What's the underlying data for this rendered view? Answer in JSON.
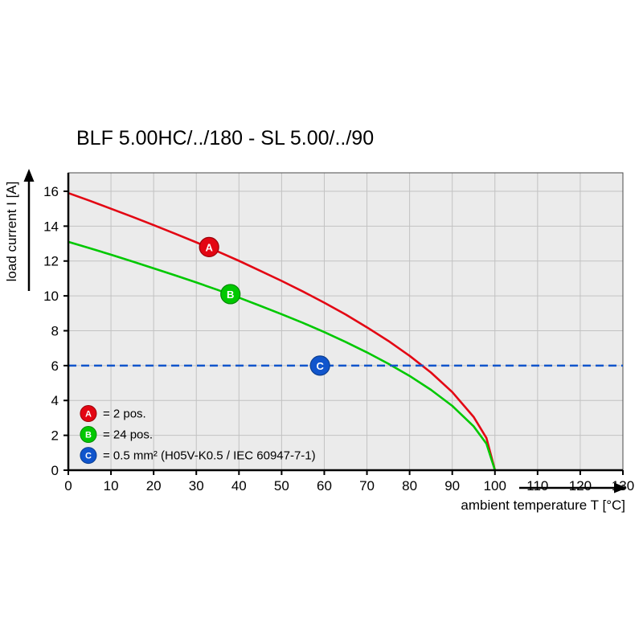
{
  "title": "BLF 5.00HC/../180 - SL 5.00/../90",
  "chart_data": {
    "type": "line",
    "title": "BLF 5.00HC/../180 - SL 5.00/../90",
    "xlabel": "ambient temperature T [°C]",
    "ylabel": "load current I [A]",
    "xlim": [
      0,
      130
    ],
    "ylim": [
      0,
      17.06
    ],
    "x_ticks": [
      0,
      10,
      20,
      30,
      40,
      50,
      60,
      70,
      80,
      90,
      100,
      110,
      120,
      130
    ],
    "y_ticks": [
      0,
      2,
      4,
      6,
      8,
      10,
      12,
      14,
      16
    ],
    "grid": true,
    "legend_position": "lower-left-inside",
    "style": {
      "plot_bg": "#ebebeb",
      "grid_color": "#c2c2c2",
      "border_color": "#4a4a4a",
      "axis_color": "#000000"
    },
    "series": [
      {
        "name": "A",
        "legend_text": "= 2 pos.",
        "color": "#e30613",
        "edge": "#9b0009",
        "kind": "curve",
        "x": [
          0,
          5,
          10,
          15,
          20,
          25,
          30,
          35,
          40,
          45,
          50,
          55,
          60,
          65,
          70,
          75,
          80,
          85,
          90,
          95,
          98,
          100
        ],
        "y": [
          15.9,
          15.46,
          15.0,
          14.54,
          14.06,
          13.57,
          13.07,
          12.55,
          12.01,
          11.44,
          10.86,
          10.25,
          9.61,
          8.93,
          8.2,
          7.42,
          6.56,
          5.6,
          4.48,
          3.06,
          1.85,
          0
        ],
        "marker": {
          "x": 33,
          "y": 12.8
        }
      },
      {
        "name": "B",
        "legend_text": "= 24 pos.",
        "color": "#00c800",
        "edge": "#008a00",
        "kind": "curve",
        "x": [
          0,
          5,
          10,
          15,
          20,
          25,
          30,
          35,
          40,
          45,
          50,
          55,
          60,
          65,
          70,
          75,
          80,
          85,
          90,
          95,
          98,
          100
        ],
        "y": [
          13.1,
          12.74,
          12.36,
          11.98,
          11.58,
          11.18,
          10.77,
          10.34,
          9.9,
          9.43,
          8.95,
          8.45,
          7.92,
          7.36,
          6.76,
          6.11,
          5.41,
          4.61,
          3.69,
          2.52,
          1.52,
          0
        ],
        "marker": {
          "x": 38,
          "y": 10.1
        }
      },
      {
        "name": "C",
        "legend_text": "= 0.5 mm² (H05V-K0.5 / IEC 60947-7-1)",
        "color": "#1155cc",
        "edge": "#0b3e91",
        "kind": "hline",
        "value": 6,
        "dashed": true,
        "marker": {
          "x": 59,
          "y": 6
        }
      }
    ],
    "legend": {
      "x": 4.7,
      "y": [
        3.25,
        2.05,
        0.85
      ]
    }
  }
}
